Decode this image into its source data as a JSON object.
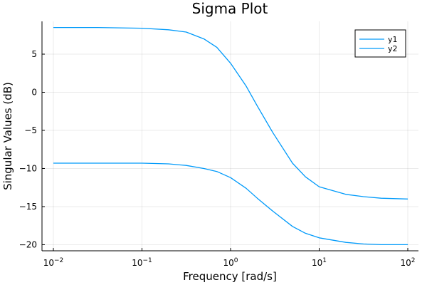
{
  "chart_data": {
    "type": "line",
    "title": "Sigma Plot",
    "xlabel": "Frequency [rad/s]",
    "ylabel": "Singular Values (dB)",
    "xscale": "log",
    "xlim": [
      0.01,
      100
    ],
    "ylim": [
      -20.8,
      9.3
    ],
    "grid": true,
    "legend_position": "top-right",
    "series_color": "#009AFA",
    "x_ticks": [
      {
        "value": 0.01,
        "base": "10",
        "exp": "−2"
      },
      {
        "value": 0.1,
        "base": "10",
        "exp": "−1"
      },
      {
        "value": 1,
        "base": "10",
        "exp": "0"
      },
      {
        "value": 10,
        "base": "10",
        "exp": "1"
      },
      {
        "value": 100,
        "base": "10",
        "exp": "2"
      }
    ],
    "y_ticks": [
      {
        "value": 5,
        "label": "5"
      },
      {
        "value": 0,
        "label": "0"
      },
      {
        "value": -5,
        "label": "−5"
      },
      {
        "value": -10,
        "label": "−10"
      },
      {
        "value": -15,
        "label": "−15"
      },
      {
        "value": -20,
        "label": "−20"
      }
    ],
    "series": [
      {
        "name": "y1",
        "x": [
          0.01,
          0.0316,
          0.1,
          0.2,
          0.316,
          0.5,
          0.7,
          1.0,
          1.5,
          2.0,
          3.0,
          5.0,
          7.0,
          10.0,
          20.0,
          31.6,
          50.0,
          100.0
        ],
        "y": [
          8.5,
          8.5,
          8.4,
          8.2,
          7.9,
          7.0,
          5.9,
          3.8,
          0.8,
          -1.8,
          -5.3,
          -9.3,
          -11.1,
          -12.4,
          -13.4,
          -13.7,
          -13.9,
          -14.0
        ]
      },
      {
        "name": "y2",
        "x": [
          0.01,
          0.0316,
          0.1,
          0.2,
          0.316,
          0.5,
          0.7,
          1.0,
          1.5,
          2.0,
          3.0,
          5.0,
          7.0,
          10.0,
          20.0,
          31.6,
          50.0,
          100.0
        ],
        "y": [
          -9.3,
          -9.3,
          -9.3,
          -9.4,
          -9.6,
          -10.0,
          -10.4,
          -11.2,
          -12.6,
          -13.9,
          -15.6,
          -17.6,
          -18.5,
          -19.1,
          -19.7,
          -19.9,
          -20.0,
          -20.0
        ]
      }
    ]
  }
}
